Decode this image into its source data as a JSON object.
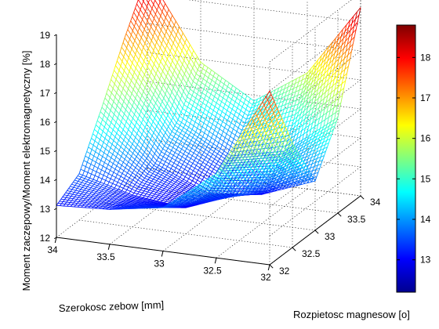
{
  "chart_data": {
    "type": "surface",
    "xlabel": "Szerokosc zebow [mm]",
    "ylabel": "Rozpietosc magnesow [o]",
    "zlabel": "Moment zaczepowy/Moment elektromagnetyczny [%]",
    "x_ticks": [
      "34",
      "33.5",
      "33",
      "32.5",
      "32"
    ],
    "y_ticks": [
      "32",
      "32.5",
      "33",
      "33.5",
      "34"
    ],
    "z_ticks": [
      "12",
      "13",
      "14",
      "15",
      "16",
      "17",
      "18",
      "19"
    ],
    "colorbar_ticks": [
      "13",
      "14",
      "15",
      "16",
      "17",
      "18"
    ],
    "xlim": [
      32,
      34
    ],
    "ylim": [
      32,
      34
    ],
    "zlim": [
      12,
      19
    ],
    "clim": [
      12.2,
      18.8
    ],
    "colormap": "jet",
    "grid": true,
    "surface": {
      "x": [
        34,
        33.5,
        33,
        32.5,
        32
      ],
      "y": [
        32,
        32.5,
        33,
        33.5,
        34
      ],
      "z": [
        [
          13.1,
          13.6,
          15.3,
          17.1,
          18.7
        ],
        [
          13.2,
          13.1,
          13.6,
          14.5,
          15.9
        ],
        [
          13.5,
          12.9,
          12.8,
          13.5,
          14.8
        ],
        [
          14.9,
          13.6,
          13.0,
          13.9,
          16.0
        ],
        [
          18.0,
          15.6,
          13.7,
          15.3,
          18.5
        ]
      ]
    }
  }
}
